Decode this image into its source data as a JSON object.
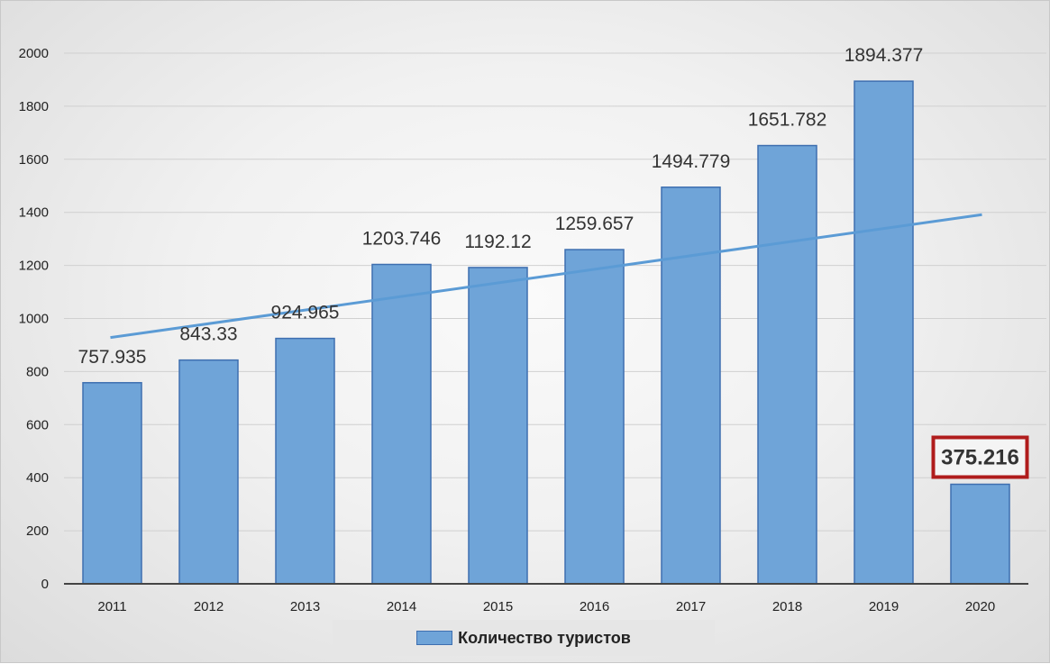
{
  "chart_data": {
    "type": "bar",
    "categories": [
      "2011",
      "2012",
      "2013",
      "2014",
      "2015",
      "2016",
      "2017",
      "2018",
      "2019",
      "2020"
    ],
    "series": [
      {
        "name": "Количество туристов",
        "values": [
          757.935,
          843.33,
          924.965,
          1203.746,
          1192.12,
          1259.657,
          1494.779,
          1651.782,
          1894.377,
          375.216
        ]
      }
    ],
    "data_labels": [
      "757.935",
      "843.33",
      "924.965",
      "1203.746",
      "1192.12",
      "1259.657",
      "1494.779",
      "1651.782",
      "1894.377",
      "375.216"
    ],
    "highlighted_label": "375.216",
    "ylim": [
      0,
      2000
    ],
    "yticks": [
      "0",
      "200",
      "400",
      "600",
      "800",
      "1000",
      "1200",
      "1400",
      "1600",
      "1800",
      "2000"
    ],
    "trendline": {
      "type": "linear",
      "color": "#5b9bd5"
    },
    "title": "",
    "xlabel": "",
    "ylabel": "",
    "grid": true,
    "legend_position": "bottom",
    "colors": {
      "bar_fill": "#6fa4d8",
      "bar_stroke": "#3e6fb0",
      "trendline": "#5b9bd5",
      "highlight_border": "#b01c1c"
    }
  },
  "legend": {
    "label": "Количество туристов"
  }
}
